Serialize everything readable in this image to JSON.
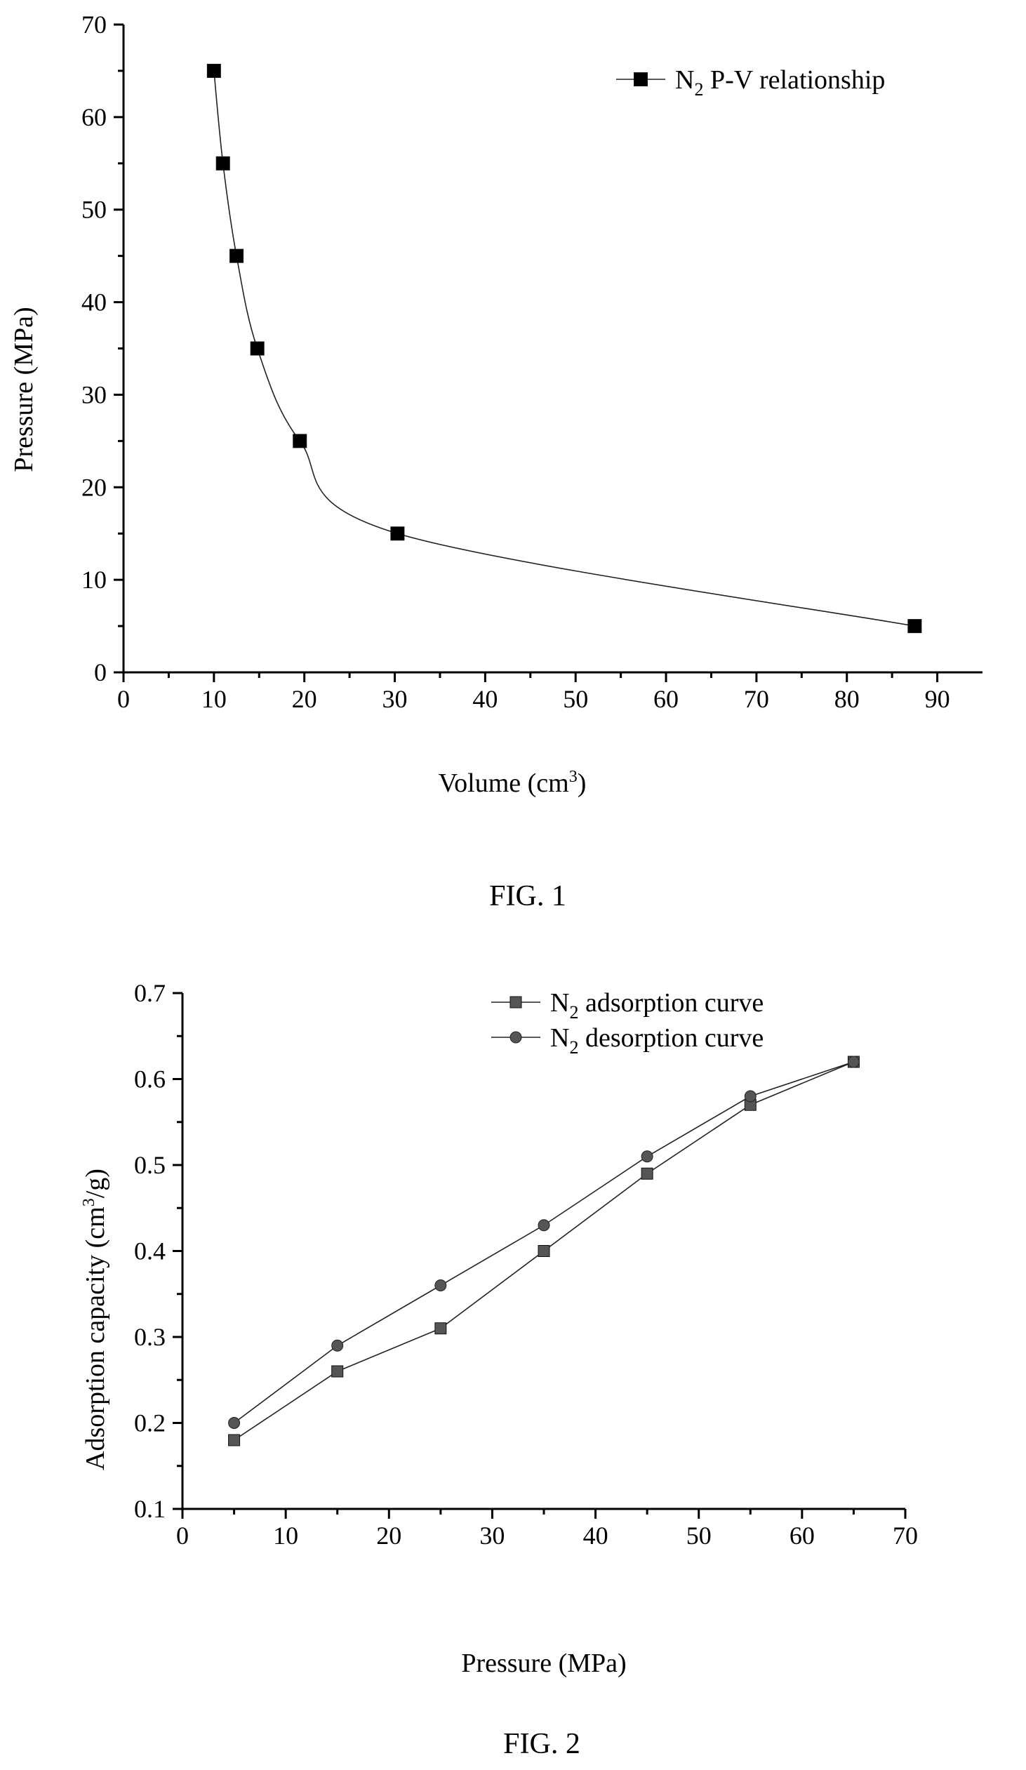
{
  "chart_data": [
    {
      "type": "line",
      "title": "",
      "xlabel": "Volume (cm",
      "xlabel_sup": "3",
      "xlabel_end": ")",
      "ylabel": "Pressure (MPa)",
      "xlim": [
        0,
        95
      ],
      "ylim": [
        0,
        70
      ],
      "x_ticks": [
        "0",
        "10",
        "20",
        "30",
        "40",
        "50",
        "60",
        "70",
        "80",
        "90"
      ],
      "y_ticks": [
        "0",
        "10",
        "20",
        "30",
        "40",
        "50",
        "60",
        "70"
      ],
      "legend_position": "top-right",
      "grid": false,
      "caption": "FIG. 1",
      "series": [
        {
          "name_main": "N",
          "name_sub": "2",
          "name_rest": " P-V relationship",
          "marker": "square",
          "color": "#000000",
          "x": [
            10,
            11,
            12.5,
            14.8,
            19.5,
            30.3,
            87.5
          ],
          "y": [
            65,
            55,
            45,
            35,
            25,
            15,
            5
          ]
        }
      ]
    },
    {
      "type": "line",
      "title": "",
      "xlabel": "Pressure (MPa)",
      "ylabel": "Adsorption capacity (cm",
      "ylabel_sup": "3",
      "ylabel_end": "/g)",
      "xlim": [
        0,
        70
      ],
      "ylim": [
        0.1,
        0.7
      ],
      "x_ticks": [
        "0",
        "10",
        "20",
        "30",
        "40",
        "50",
        "60",
        "70"
      ],
      "y_ticks": [
        "0.1",
        "0.2",
        "0.3",
        "0.4",
        "0.5",
        "0.6",
        "0.7"
      ],
      "legend_position": "top-right",
      "grid": false,
      "caption": "FIG. 2",
      "series": [
        {
          "name_main": "N",
          "name_sub": "2",
          "name_rest": " adsorption curve",
          "marker": "square",
          "color": "#555555",
          "x": [
            5,
            15,
            25,
            35,
            45,
            55,
            65
          ],
          "y": [
            0.18,
            0.26,
            0.31,
            0.4,
            0.49,
            0.57,
            0.62
          ]
        },
        {
          "name_main": "N",
          "name_sub": "2",
          "name_rest": " desorption curve",
          "marker": "circle",
          "color": "#555555",
          "x": [
            5,
            15,
            25,
            35,
            45,
            55,
            65
          ],
          "y": [
            0.2,
            0.29,
            0.36,
            0.43,
            0.51,
            0.58,
            0.62
          ]
        }
      ]
    }
  ]
}
